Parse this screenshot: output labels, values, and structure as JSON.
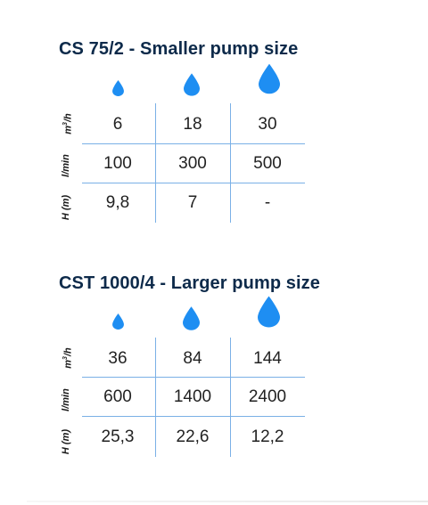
{
  "colors": {
    "title": "#0d2a4a",
    "drop": "#1e8ef2",
    "grid": "#7ab0e6"
  },
  "sections": [
    {
      "title": "CS 75/2 - Smaller pump size",
      "icons": [
        "water-drop-small-icon",
        "water-drop-medium-icon",
        "water-drop-large-icon"
      ],
      "row_labels": {
        "m3h_base": "m",
        "m3h_exp": "3",
        "m3h_tail": "/h",
        "lmin": "l/min",
        "h": "H (m)"
      },
      "rows": [
        [
          "6",
          "18",
          "30"
        ],
        [
          "100",
          "300",
          "500"
        ],
        [
          "9,8",
          "7",
          "-"
        ]
      ]
    },
    {
      "title": "CST 1000/4 - Larger pump size",
      "icons": [
        "water-drop-small-icon",
        "water-drop-medium-icon",
        "water-drop-large-icon"
      ],
      "row_labels": {
        "m3h_base": "m",
        "m3h_exp": "3",
        "m3h_tail": "/h",
        "lmin": "l/min",
        "h": "H (m)"
      },
      "rows": [
        [
          "36",
          "84",
          "144"
        ],
        [
          "600",
          "1400",
          "2400"
        ],
        [
          "25,3",
          "22,6",
          "12,2"
        ]
      ]
    }
  ]
}
